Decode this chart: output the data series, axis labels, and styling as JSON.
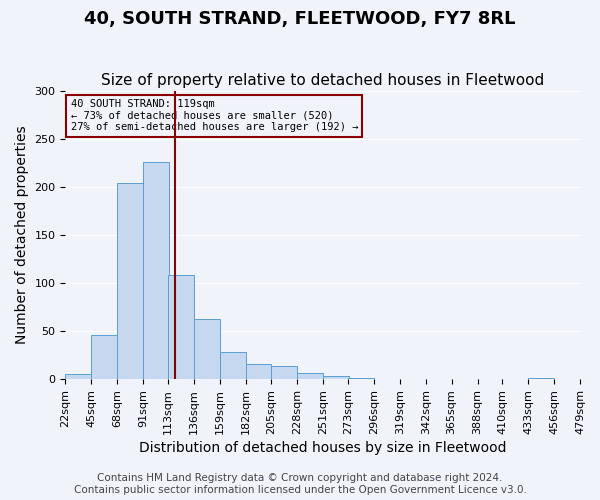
{
  "title": "40, SOUTH STRAND, FLEETWOOD, FY7 8RL",
  "subtitle": "Size of property relative to detached houses in Fleetwood",
  "xlabel": "Distribution of detached houses by size in Fleetwood",
  "ylabel": "Number of detached properties",
  "bar_values": [
    5,
    46,
    204,
    226,
    108,
    63,
    28,
    16,
    14,
    6,
    3,
    1,
    0,
    0,
    0,
    0,
    0,
    0,
    1
  ],
  "bin_edges": [
    22,
    45,
    68,
    91,
    113,
    136,
    159,
    182,
    205,
    228,
    251,
    273,
    296,
    319,
    342,
    365,
    388,
    410,
    433,
    456
  ],
  "tick_labels": [
    "22sqm",
    "45sqm",
    "68sqm",
    "91sqm",
    "113sqm",
    "136sqm",
    "159sqm",
    "182sqm",
    "205sqm",
    "228sqm",
    "251sqm",
    "273sqm",
    "296sqm",
    "319sqm",
    "342sqm",
    "365sqm",
    "388sqm",
    "410sqm",
    "433sqm",
    "456sqm",
    "479sqm"
  ],
  "bar_color": "#c5d8f0",
  "bar_edge_color": "#5a9fd4",
  "vline_x": 119,
  "vline_color": "#8b0000",
  "annotation_box_text": "40 SOUTH STRAND: 119sqm\n← 73% of detached houses are smaller (520)\n27% of semi-detached houses are larger (192) →",
  "annotation_box_color": "#8b0000",
  "ylim": [
    0,
    300
  ],
  "yticks": [
    0,
    50,
    100,
    150,
    200,
    250,
    300
  ],
  "footer_line1": "Contains HM Land Registry data © Crown copyright and database right 2024.",
  "footer_line2": "Contains public sector information licensed under the Open Government Licence v3.0.",
  "background_color": "#f0f4fa",
  "grid_color": "#ffffff",
  "title_fontsize": 13,
  "subtitle_fontsize": 11,
  "axis_label_fontsize": 10,
  "tick_fontsize": 8,
  "footer_fontsize": 7.5
}
